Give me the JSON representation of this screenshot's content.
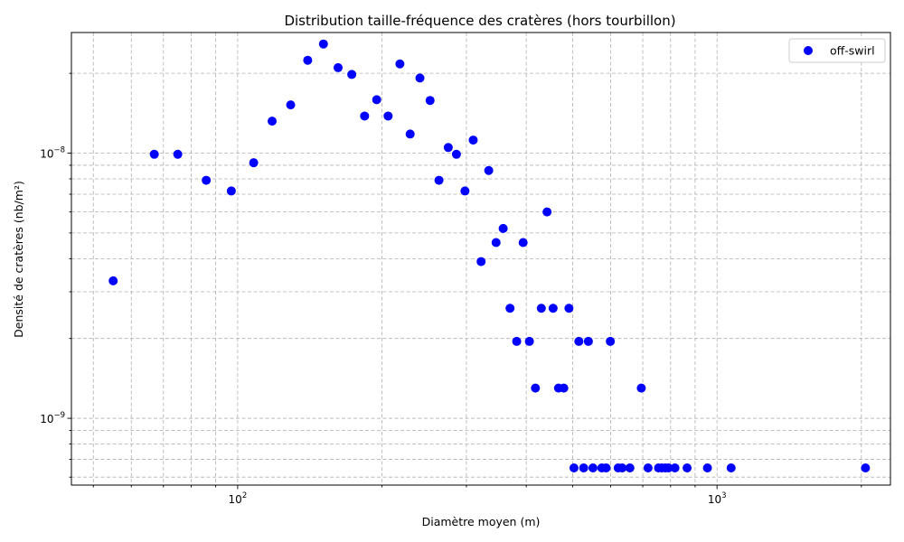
{
  "chart_data": {
    "type": "scatter",
    "title": "Distribution taille-fréquence des cratères (hors tourbillon)",
    "xlabel": "Diamètre moyen (m)",
    "ylabel": "Densité de cratères (nb/m²)",
    "xscale": "log",
    "yscale": "log",
    "xlim": [
      45,
      2300
    ],
    "ylim": [
      5.6e-10,
      2.85e-08
    ],
    "x_major_ticks": [
      {
        "base": "10",
        "exp": "2",
        "value": 100
      },
      {
        "base": "10",
        "exp": "3",
        "value": 1000
      }
    ],
    "y_major_ticks": [
      {
        "base": "10",
        "exp": "−9",
        "value": 1e-09
      },
      {
        "base": "10",
        "exp": "−8",
        "value": 1e-08
      }
    ],
    "grid": true,
    "legend": "top-right",
    "series": [
      {
        "name": "off-swirl",
        "color": "#0000ff",
        "points": [
          [
            55,
            3.3e-09
          ],
          [
            67,
            9.9e-09
          ],
          [
            75,
            9.9e-09
          ],
          [
            86,
            7.9e-09
          ],
          [
            97,
            7.2e-09
          ],
          [
            108,
            9.2e-09
          ],
          [
            118,
            1.32e-08
          ],
          [
            129,
            1.52e-08
          ],
          [
            140,
            2.24e-08
          ],
          [
            151,
            2.58e-08
          ],
          [
            162,
            2.1e-08
          ],
          [
            173,
            1.98e-08
          ],
          [
            184,
            1.38e-08
          ],
          [
            195,
            1.59e-08
          ],
          [
            206,
            1.38e-08
          ],
          [
            218,
            2.17e-08
          ],
          [
            229,
            1.18e-08
          ],
          [
            240,
            1.92e-08
          ],
          [
            252,
            1.58e-08
          ],
          [
            263,
            7.9e-09
          ],
          [
            275,
            1.05e-08
          ],
          [
            286,
            9.9e-09
          ],
          [
            298,
            7.2e-09
          ],
          [
            310,
            1.12e-08
          ],
          [
            322,
            3.9e-09
          ],
          [
            334,
            8.6e-09
          ],
          [
            346,
            4.6e-09
          ],
          [
            358,
            5.2e-09
          ],
          [
            370,
            2.6e-09
          ],
          [
            382,
            1.95e-09
          ],
          [
            394,
            4.6e-09
          ],
          [
            406,
            1.95e-09
          ],
          [
            418,
            1.3e-09
          ],
          [
            430,
            2.6e-09
          ],
          [
            442,
            6e-09
          ],
          [
            455,
            2.6e-09
          ],
          [
            467,
            1.3e-09
          ],
          [
            479,
            1.3e-09
          ],
          [
            491,
            2.6e-09
          ],
          [
            503,
            6.5e-10
          ],
          [
            515,
            1.95e-09
          ],
          [
            527,
            6.5e-10
          ],
          [
            539,
            1.95e-09
          ],
          [
            551,
            6.5e-10
          ],
          [
            575,
            6.5e-10
          ],
          [
            587,
            6.5e-10
          ],
          [
            599,
            1.95e-09
          ],
          [
            622,
            6.5e-10
          ],
          [
            634,
            6.5e-10
          ],
          [
            658,
            6.5e-10
          ],
          [
            695,
            1.3e-09
          ],
          [
            718,
            6.5e-10
          ],
          [
            755,
            6.5e-10
          ],
          [
            767,
            6.5e-10
          ],
          [
            780,
            6.5e-10
          ],
          [
            792,
            6.5e-10
          ],
          [
            817,
            6.5e-10
          ],
          [
            866,
            6.5e-10
          ],
          [
            955,
            6.5e-10
          ],
          [
            1070,
            6.5e-10
          ],
          [
            2040,
            6.5e-10
          ]
        ]
      }
    ]
  }
}
